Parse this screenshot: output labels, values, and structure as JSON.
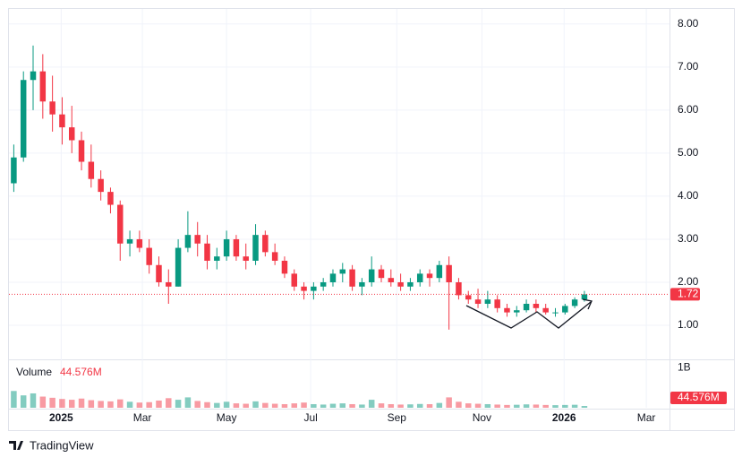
{
  "chart_data": {
    "type": "candlestick",
    "x": [
      0.5,
      1.5,
      2.5,
      3.5,
      4.5,
      5.5,
      6.5,
      7.5,
      8.5,
      9.5,
      10.5,
      11.5,
      12.5,
      13.5,
      14.5,
      15.5,
      16.5,
      17.5,
      18.5,
      19.5,
      20.5,
      21.5,
      22.5,
      23.5,
      24.5,
      25.5,
      26.5,
      27.5,
      28.5,
      29.5,
      30.5,
      31.5,
      32.5,
      33.5,
      34.5,
      35.5,
      36.5,
      37.5,
      38.5,
      39.5,
      40.5,
      41.5,
      42.5,
      43.5,
      44.5,
      45.5,
      46.5,
      47.5,
      48.5,
      49.5,
      50.5,
      51.5,
      52.5,
      53.5,
      54.5,
      55.5,
      56.5,
      57.5,
      58.5,
      59.5
    ],
    "open": [
      4.3,
      4.9,
      6.7,
      6.9,
      6.2,
      5.9,
      5.6,
      5.3,
      4.8,
      4.4,
      4.1,
      3.8,
      2.9,
      3.0,
      2.8,
      2.4,
      2.0,
      1.9,
      2.8,
      3.1,
      2.9,
      2.5,
      2.6,
      3.0,
      2.6,
      2.5,
      3.1,
      2.7,
      2.5,
      2.2,
      1.9,
      1.8,
      1.9,
      2.0,
      2.2,
      2.3,
      1.9,
      2.0,
      2.3,
      2.1,
      2.0,
      1.9,
      2.0,
      2.2,
      2.1,
      2.4,
      2.0,
      1.7,
      1.6,
      1.5,
      1.6,
      1.4,
      1.3,
      1.35,
      1.5,
      1.4,
      1.3,
      1.3,
      1.45,
      1.6
    ],
    "high": [
      5.2,
      6.9,
      7.5,
      7.3,
      6.8,
      6.3,
      6.1,
      5.5,
      5.2,
      4.6,
      4.2,
      3.9,
      3.2,
      3.2,
      3.0,
      2.6,
      2.3,
      3.0,
      3.65,
      3.4,
      3.1,
      2.8,
      3.2,
      3.1,
      2.9,
      3.35,
      3.2,
      2.9,
      2.6,
      2.3,
      2.0,
      2.0,
      2.1,
      2.3,
      2.45,
      2.4,
      2.1,
      2.6,
      2.4,
      2.3,
      2.2,
      2.1,
      2.3,
      2.3,
      2.5,
      2.6,
      2.1,
      1.8,
      1.85,
      1.8,
      1.7,
      1.5,
      1.45,
      1.6,
      1.6,
      1.5,
      1.4,
      1.5,
      1.65,
      1.8
    ],
    "low": [
      4.1,
      4.8,
      6.0,
      5.8,
      5.5,
      5.2,
      5.0,
      4.6,
      4.2,
      3.9,
      3.6,
      2.5,
      2.6,
      2.7,
      2.2,
      1.9,
      1.5,
      1.9,
      2.7,
      2.6,
      2.3,
      2.3,
      2.5,
      2.5,
      2.3,
      2.4,
      2.6,
      2.4,
      2.1,
      1.8,
      1.6,
      1.6,
      1.8,
      1.9,
      2.0,
      1.8,
      1.7,
      1.9,
      2.0,
      1.9,
      1.8,
      1.8,
      1.9,
      1.9,
      2.0,
      0.9,
      1.6,
      1.5,
      1.4,
      1.4,
      1.3,
      1.2,
      1.2,
      1.3,
      1.3,
      1.25,
      1.2,
      1.25,
      1.4,
      1.55
    ],
    "close": [
      4.9,
      6.7,
      6.9,
      6.2,
      5.9,
      5.6,
      5.3,
      4.8,
      4.4,
      4.1,
      3.8,
      2.9,
      3.0,
      2.8,
      2.4,
      2.0,
      1.9,
      2.8,
      3.1,
      2.9,
      2.5,
      2.6,
      3.0,
      2.6,
      2.5,
      3.1,
      2.7,
      2.5,
      2.2,
      1.9,
      1.8,
      1.9,
      2.0,
      2.2,
      2.3,
      1.9,
      2.0,
      2.3,
      2.1,
      2.0,
      1.9,
      2.0,
      2.2,
      2.1,
      2.4,
      2.0,
      1.7,
      1.6,
      1.5,
      1.6,
      1.4,
      1.3,
      1.35,
      1.5,
      1.4,
      1.3,
      1.3,
      1.45,
      1.6,
      1.72
    ],
    "up_color": "#089981",
    "down_color": "#f23645",
    "xlim": [
      0,
      68.3
    ],
    "xticks": [
      {
        "value": 5.4,
        "label": "2025"
      },
      {
        "value": 13.8,
        "label": "Mar"
      },
      {
        "value": 22.5,
        "label": "May"
      },
      {
        "value": 31.2,
        "label": "Jul"
      },
      {
        "value": 40.1,
        "label": "Sep"
      },
      {
        "value": 48.9,
        "label": "Nov"
      },
      {
        "value": 57.4,
        "label": "2026"
      },
      {
        "value": 65.9,
        "label": "Mar"
      }
    ],
    "ylim": [
      0.23,
      8.35
    ],
    "yticks": [
      {
        "value": 1,
        "label": "1.00"
      },
      {
        "value": 2,
        "label": "2.00"
      },
      {
        "value": 3,
        "label": "3.00"
      },
      {
        "value": 4,
        "label": "4.00"
      },
      {
        "value": 5,
        "label": "5.00"
      },
      {
        "value": 6,
        "label": "6.00"
      },
      {
        "value": 7,
        "label": "7.00"
      },
      {
        "value": 8,
        "label": "8.00"
      }
    ],
    "grid": true,
    "last_price": 1.72,
    "volume": {
      "name": "Volume",
      "values": [
        420000000,
        310000000,
        360000000,
        280000000,
        250000000,
        220000000,
        200000000,
        230000000,
        190000000,
        170000000,
        160000000,
        210000000,
        150000000,
        130000000,
        140000000,
        180000000,
        240000000,
        200000000,
        260000000,
        170000000,
        140000000,
        120000000,
        150000000,
        110000000,
        100000000,
        160000000,
        120000000,
        100000000,
        90000000,
        110000000,
        130000000,
        90000000,
        80000000,
        100000000,
        110000000,
        90000000,
        80000000,
        200000000,
        110000000,
        90000000,
        80000000,
        85000000,
        95000000,
        90000000,
        120000000,
        260000000,
        150000000,
        110000000,
        100000000,
        90000000,
        80000000,
        70000000,
        75000000,
        85000000,
        80000000,
        70000000,
        65000000,
        70000000,
        75000000,
        44576000
      ],
      "last_label": "44.576M",
      "ylim": [
        0,
        1190000000
      ],
      "yticks": [
        {
          "value": 1000000000,
          "label": "1B"
        }
      ]
    },
    "brand": "TradingView"
  }
}
